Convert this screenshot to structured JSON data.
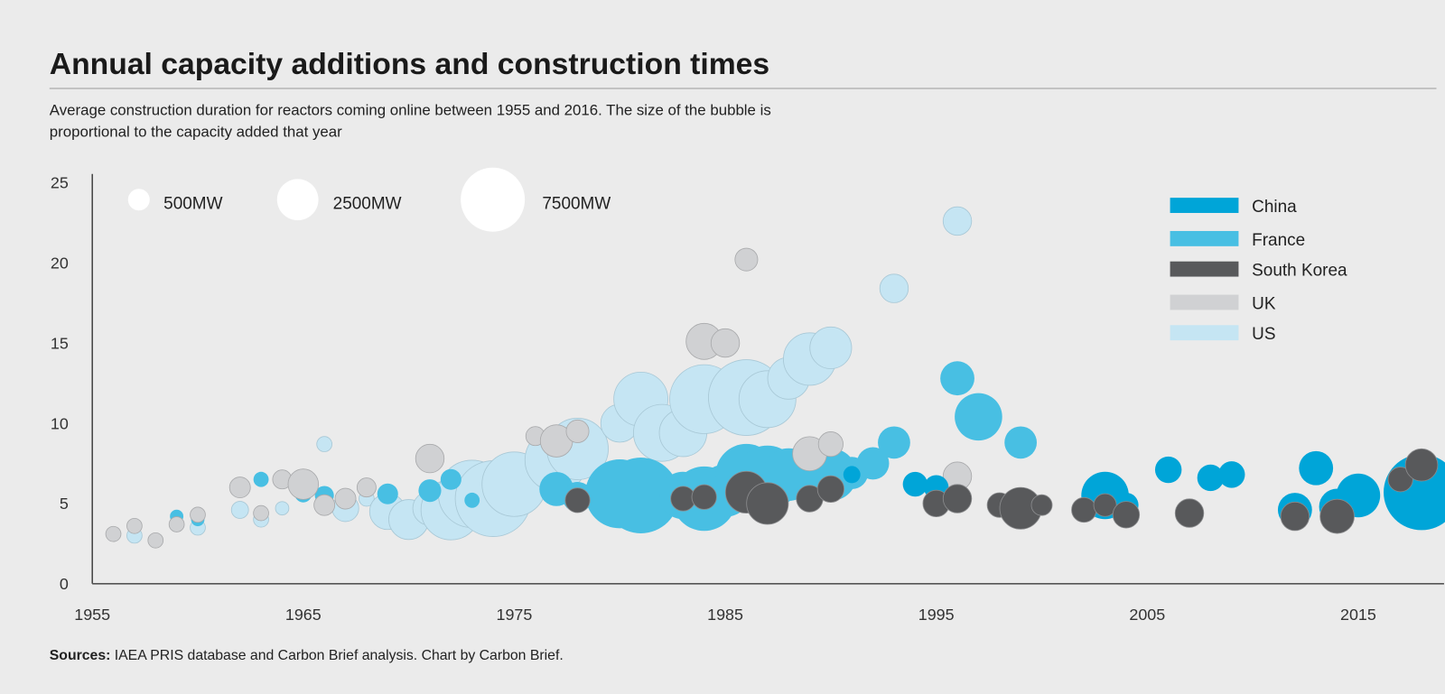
{
  "header": {
    "title": "Annual capacity additions and construction times",
    "subtitle_line1": "Average construction duration for reactors coming online between 1955 and 2016. The size of the bubble is",
    "subtitle_line2": "proportional to the capacity added that year"
  },
  "footer": {
    "sources_label": "Sources:",
    "sources_text": " IAEA PRIS database and Carbon Brief analysis. Chart by Carbon Brief."
  },
  "chart_data": {
    "type": "scatter",
    "subtype": "bubble",
    "xlim": [
      1955,
      2018
    ],
    "ylim": [
      0,
      25
    ],
    "x_ticks": [
      "1955",
      "1965",
      "1975",
      "1985",
      "1995",
      "2005",
      "2015"
    ],
    "y_ticks": [
      "0",
      "5",
      "10",
      "15",
      "20",
      "25"
    ],
    "grid": false,
    "size_legend": [
      {
        "label": "500MW",
        "value": 500
      },
      {
        "label": "2500MW",
        "value": 2500
      },
      {
        "label": "7500MW",
        "value": 7500
      }
    ],
    "legend_position": "top-right",
    "point_format": [
      "year",
      "construction_years",
      "capacity_MW"
    ],
    "series": [
      {
        "name": "China",
        "color": "#00a5d8",
        "points": [
          [
            1991,
            6.8,
            275
          ],
          [
            1994,
            6.2,
            690
          ],
          [
            1995,
            6.0,
            690
          ],
          [
            2003,
            5.5,
            3540
          ],
          [
            2004,
            4.9,
            690
          ],
          [
            2006,
            7.1,
            830
          ],
          [
            2008,
            6.6,
            830
          ],
          [
            2009,
            6.8,
            830
          ],
          [
            2012,
            4.6,
            1550
          ],
          [
            2013,
            7.2,
            1550
          ],
          [
            2014,
            4.8,
            1780
          ],
          [
            2015,
            5.5,
            2900
          ],
          [
            2018,
            5.7,
            11400
          ]
        ]
      },
      {
        "name": "France",
        "color": "#48bfe3",
        "points": [
          [
            1959,
            4.2,
            150
          ],
          [
            1960,
            4.0,
            150
          ],
          [
            1963,
            6.5,
            205
          ],
          [
            1965,
            5.6,
            275
          ],
          [
            1966,
            5.5,
            360
          ],
          [
            1969,
            5.6,
            450
          ],
          [
            1971,
            5.8,
            560
          ],
          [
            1972,
            6.5,
            450
          ],
          [
            1973,
            5.2,
            205
          ],
          [
            1977,
            5.9,
            1550
          ],
          [
            1978,
            5.4,
            1160
          ],
          [
            1980,
            5.6,
            9000
          ],
          [
            1981,
            5.5,
            11400
          ],
          [
            1983,
            5.5,
            3540
          ],
          [
            1984,
            5.3,
            7600
          ],
          [
            1985,
            5.8,
            4550
          ],
          [
            1986,
            6.8,
            6740
          ],
          [
            1987,
            6.6,
            7600
          ],
          [
            1988,
            6.8,
            4550
          ],
          [
            1990,
            6.8,
            4550
          ],
          [
            1991,
            6.9,
            1350
          ],
          [
            1992,
            7.5,
            1350
          ],
          [
            1993,
            8.8,
            1350
          ],
          [
            1996,
            12.8,
            1550
          ],
          [
            1997,
            10.4,
            3540
          ],
          [
            1999,
            8.8,
            1350
          ]
        ]
      },
      {
        "name": "South Korea",
        "color": "#58595b",
        "points": [
          [
            1978,
            5.2,
            690
          ],
          [
            1983,
            5.3,
            690
          ],
          [
            1984,
            5.4,
            690
          ],
          [
            1986,
            5.7,
            2560
          ],
          [
            1987,
            5.0,
            2560
          ],
          [
            1989,
            5.3,
            830
          ],
          [
            1990,
            5.9,
            830
          ],
          [
            1995,
            5.0,
            830
          ],
          [
            1996,
            5.3,
            985
          ],
          [
            1998,
            4.9,
            690
          ],
          [
            1999,
            4.7,
            2560
          ],
          [
            2000,
            4.9,
            450
          ],
          [
            2002,
            4.6,
            690
          ],
          [
            2003,
            4.9,
            560
          ],
          [
            2004,
            4.3,
            830
          ],
          [
            2007,
            4.4,
            985
          ],
          [
            2012,
            4.2,
            985
          ],
          [
            2014,
            4.2,
            1550
          ],
          [
            2017,
            6.5,
            690
          ],
          [
            2018,
            7.4,
            1350
          ]
        ]
      },
      {
        "name": "UK",
        "color": "#d0d1d3",
        "points": [
          [
            1956,
            3.1,
            205
          ],
          [
            1957,
            3.6,
            205
          ],
          [
            1958,
            2.7,
            205
          ],
          [
            1959,
            3.7,
            205
          ],
          [
            1960,
            4.3,
            205
          ],
          [
            1962,
            6.0,
            450
          ],
          [
            1963,
            4.4,
            205
          ],
          [
            1964,
            6.5,
            360
          ],
          [
            1965,
            6.2,
            1160
          ],
          [
            1966,
            4.9,
            450
          ],
          [
            1967,
            5.3,
            450
          ],
          [
            1968,
            6.0,
            360
          ],
          [
            1971,
            7.8,
            985
          ],
          [
            1976,
            9.2,
            360
          ],
          [
            1977,
            8.9,
            1350
          ],
          [
            1978,
            9.5,
            560
          ],
          [
            1984,
            15.1,
            1780
          ],
          [
            1985,
            15.0,
            985
          ],
          [
            1986,
            20.2,
            560
          ],
          [
            1989,
            8.1,
            1550
          ],
          [
            1990,
            8.7,
            690
          ],
          [
            1996,
            6.7,
            985
          ]
        ]
      },
      {
        "name": "US",
        "color": "#c5e5f3",
        "points": [
          [
            1957,
            3.0,
            205
          ],
          [
            1960,
            3.5,
            205
          ],
          [
            1962,
            4.6,
            275
          ],
          [
            1963,
            4.0,
            205
          ],
          [
            1964,
            4.7,
            150
          ],
          [
            1966,
            8.7,
            205
          ],
          [
            1967,
            4.7,
            830
          ],
          [
            1968,
            5.3,
            205
          ],
          [
            1969,
            4.5,
            1780
          ],
          [
            1970,
            4.0,
            2300
          ],
          [
            1971,
            4.7,
            1550
          ],
          [
            1972,
            4.6,
            6340
          ],
          [
            1973,
            5.6,
            8500
          ],
          [
            1974,
            5.3,
            11400
          ],
          [
            1975,
            6.2,
            7600
          ],
          [
            1977,
            7.7,
            7160
          ],
          [
            1978,
            8.4,
            6740
          ],
          [
            1980,
            10.0,
            2020
          ],
          [
            1981,
            11.5,
            4900
          ],
          [
            1982,
            9.4,
            5570
          ],
          [
            1983,
            9.4,
            3540
          ],
          [
            1984,
            11.5,
            9000
          ],
          [
            1986,
            11.6,
            11400
          ],
          [
            1987,
            11.5,
            5570
          ],
          [
            1988,
            12.8,
            2560
          ],
          [
            1989,
            14.0,
            4550
          ],
          [
            1990,
            14.7,
            2560
          ],
          [
            1993,
            18.4,
            985
          ],
          [
            1996,
            22.6,
            985
          ]
        ]
      }
    ]
  }
}
